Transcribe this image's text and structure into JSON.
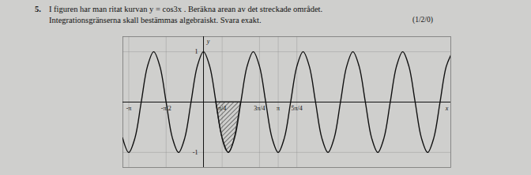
{
  "header": {
    "number": "5.",
    "line1": "I figuren har man ritat kurvan y = cos3x . Beräkna arean av det streckade området.",
    "line2": "Integrationsgränserna skall bestämmas algebraiskt. Svara exakt.",
    "points": "(1/2/0)"
  },
  "chart_data": {
    "type": "line",
    "x_label": "x",
    "y_label": "y",
    "color": "#111111",
    "grid": true,
    "x": [
      -3.403,
      -3.142,
      -2.88,
      -2.618,
      -2.356,
      -2.094,
      -1.833,
      -1.571,
      -1.309,
      -1.047,
      -0.785,
      -0.524,
      -0.262,
      0,
      0.262,
      0.524,
      0.785,
      1.047,
      1.309,
      1.571,
      1.833,
      2.094,
      2.356,
      2.618,
      2.88,
      3.142,
      3.403,
      3.665,
      3.927,
      4.189,
      4.451,
      4.712,
      4.974,
      5.236,
      5.498,
      5.76,
      6.021,
      6.283,
      6.545,
      6.807,
      7.069,
      7.33,
      7.592,
      7.854,
      8.116,
      8.378,
      8.639,
      8.901,
      9.163,
      9.425,
      9.687,
      9.948,
      10.21,
      10.472
    ],
    "values": [
      -0.71,
      -1,
      -0.71,
      0,
      0.71,
      1,
      0.71,
      0,
      -0.71,
      -1,
      -0.71,
      0,
      0.71,
      1,
      0.71,
      0,
      -0.71,
      -1,
      -0.71,
      0,
      0.71,
      1,
      0.71,
      0,
      -0.71,
      -1,
      -0.71,
      0,
      0.71,
      1,
      0.71,
      0,
      -0.71,
      -1,
      -0.71,
      0,
      0.71,
      1,
      0.71,
      0,
      -0.71,
      -1,
      -0.71,
      0,
      0.71,
      1,
      0.71,
      0,
      -0.71,
      -1,
      -0.71,
      0,
      0.71,
      1
    ],
    "shaded": {
      "x": [
        0.524,
        0.785,
        1.047,
        1.309,
        1.571
      ],
      "values": [
        0,
        -0.71,
        -1,
        -0.71,
        0
      ]
    },
    "xlim": [
      -3.39,
      10.4
    ],
    "ylim": [
      -1.3,
      1.3
    ],
    "xticks": [
      {
        "value": -3.1416,
        "label": "-π"
      },
      {
        "value": -1.5708,
        "label": "-π/2"
      },
      {
        "value": 0.7854,
        "label": "π/4"
      },
      {
        "value": 2.3562,
        "label": "3π/4"
      },
      {
        "value": 3.1416,
        "label": "π"
      },
      {
        "value": 3.927,
        "label": "5π/4"
      }
    ],
    "yticks": [
      1,
      -1
    ]
  }
}
